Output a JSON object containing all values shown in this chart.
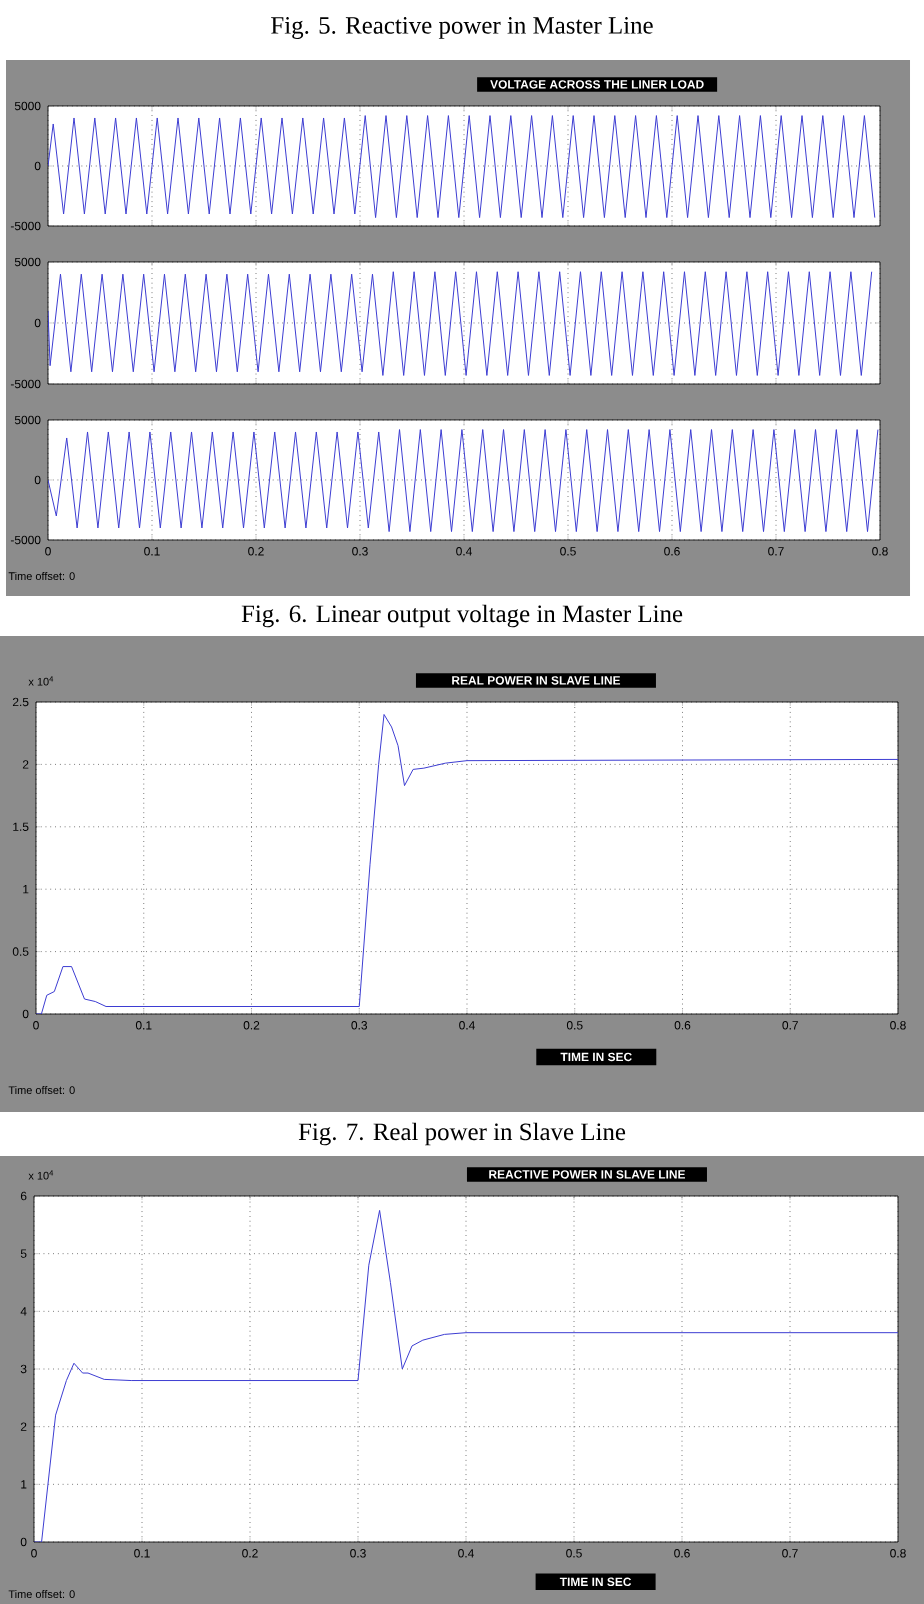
{
  "chart_data": [
    {
      "type": "line",
      "title": "VOLTAGE ACROSS THE LINER LOAD",
      "annotations": [
        "Fig. 5. Reactive power in Master Line"
      ],
      "xlim": [
        0,
        0.8
      ],
      "ylim": [
        -5000,
        5000
      ],
      "xticks": [
        0,
        0.1,
        0.2,
        0.3,
        0.4,
        0.5,
        0.6,
        0.7,
        0.8
      ],
      "yticks": [
        -5000,
        0,
        5000
      ],
      "grid": true,
      "tick_labels": "y",
      "x": [
        0,
        0.005,
        0.015,
        0.025,
        0.035,
        0.045,
        0.055,
        0.065,
        0.075,
        0.085,
        0.095,
        0.105,
        0.115,
        0.125,
        0.135,
        0.145,
        0.155,
        0.165,
        0.175,
        0.185,
        0.195,
        0.205,
        0.215,
        0.225,
        0.235,
        0.245,
        0.255,
        0.265,
        0.275,
        0.285,
        0.295,
        0.305,
        0.315,
        0.325,
        0.335,
        0.345,
        0.355,
        0.365,
        0.375,
        0.385,
        0.395,
        0.405,
        0.415,
        0.425,
        0.435,
        0.445,
        0.455,
        0.465,
        0.475,
        0.485,
        0.495,
        0.505,
        0.515,
        0.525,
        0.535,
        0.545,
        0.555,
        0.565,
        0.575,
        0.585,
        0.595,
        0.605,
        0.615,
        0.625,
        0.635,
        0.645,
        0.655,
        0.665,
        0.675,
        0.685,
        0.695,
        0.705,
        0.715,
        0.725,
        0.735,
        0.745,
        0.755,
        0.765,
        0.775,
        0.785,
        0.795
      ],
      "series": [
        {
          "color": "#3c3cd2",
          "values": [
            0,
            3500,
            -4000,
            4000,
            -4000,
            4000,
            -4000,
            4000,
            -4000,
            4000,
            -4000,
            4000,
            -4000,
            4000,
            -4000,
            4000,
            -4000,
            4000,
            -4000,
            4000,
            -4000,
            4000,
            -4000,
            4000,
            -4000,
            4000,
            -4000,
            4000,
            -4000,
            4000,
            -4000,
            4200,
            -4300,
            4200,
            -4300,
            4200,
            -4300,
            4200,
            -4300,
            4200,
            -4300,
            4200,
            -4300,
            4200,
            -4300,
            4200,
            -4300,
            4200,
            -4300,
            4200,
            -4300,
            4200,
            -4300,
            4200,
            -4300,
            4200,
            -4300,
            4200,
            -4300,
            4200,
            -4300,
            4200,
            -4300,
            4200,
            -4300,
            4200,
            -4300,
            4200,
            -4300,
            4200,
            -4300,
            4200,
            -4300,
            4200,
            -4300,
            4200,
            -4300,
            4200,
            -4300,
            4200,
            -4300
          ]
        }
      ]
    },
    {
      "type": "line",
      "xlim": [
        0,
        0.8
      ],
      "ylim": [
        -5000,
        5000
      ],
      "xticks": [
        0,
        0.1,
        0.2,
        0.3,
        0.4,
        0.5,
        0.6,
        0.7,
        0.8
      ],
      "yticks": [
        -5000,
        0,
        5000
      ],
      "grid": true,
      "tick_labels": "y",
      "x": [
        0,
        0.002,
        0.012,
        0.022,
        0.032,
        0.042,
        0.052,
        0.062,
        0.072,
        0.082,
        0.092,
        0.102,
        0.112,
        0.122,
        0.132,
        0.142,
        0.152,
        0.162,
        0.172,
        0.182,
        0.192,
        0.202,
        0.212,
        0.222,
        0.232,
        0.242,
        0.252,
        0.262,
        0.272,
        0.282,
        0.292,
        0.302,
        0.312,
        0.322,
        0.332,
        0.342,
        0.352,
        0.362,
        0.372,
        0.382,
        0.392,
        0.402,
        0.412,
        0.422,
        0.432,
        0.442,
        0.452,
        0.462,
        0.472,
        0.482,
        0.492,
        0.502,
        0.512,
        0.522,
        0.532,
        0.542,
        0.552,
        0.562,
        0.572,
        0.582,
        0.592,
        0.602,
        0.612,
        0.622,
        0.632,
        0.642,
        0.652,
        0.662,
        0.672,
        0.682,
        0.692,
        0.702,
        0.712,
        0.722,
        0.732,
        0.742,
        0.752,
        0.762,
        0.772,
        0.782,
        0.792
      ],
      "series": [
        {
          "color": "#3c3cd2",
          "values": [
            1000,
            -3500,
            4000,
            -4000,
            4000,
            -4000,
            4000,
            -4000,
            4000,
            -4000,
            4000,
            -4000,
            4000,
            -4000,
            4000,
            -4000,
            4000,
            -4000,
            4000,
            -4000,
            4000,
            -4000,
            4000,
            -4000,
            4000,
            -4000,
            4000,
            -4000,
            4000,
            -4000,
            4000,
            -4000,
            4000,
            -4300,
            4200,
            -4300,
            4200,
            -4300,
            4200,
            -4300,
            4200,
            -4300,
            4200,
            -4300,
            4200,
            -4300,
            4200,
            -4300,
            4200,
            -4300,
            4200,
            -4300,
            4200,
            -4300,
            4200,
            -4300,
            4200,
            -4300,
            4200,
            -4300,
            4200,
            -4300,
            4200,
            -4300,
            4200,
            -4300,
            4200,
            -4300,
            4200,
            -4300,
            4200,
            -4300,
            4200,
            -4300,
            4200,
            -4300,
            4200,
            -4300,
            4200,
            -4300,
            4200
          ]
        }
      ]
    },
    {
      "type": "line",
      "annotations": [
        "Time offset: 0",
        "Fig. 6. Linear output voltage in Master Line"
      ],
      "xlim": [
        0,
        0.8
      ],
      "ylim": [
        -5000,
        5000
      ],
      "xticks": [
        0,
        0.1,
        0.2,
        0.3,
        0.4,
        0.5,
        0.6,
        0.7,
        0.8
      ],
      "yticks": [
        -5000,
        0,
        5000
      ],
      "grid": true,
      "x": [
        0,
        0.008,
        0.018,
        0.028,
        0.038,
        0.048,
        0.058,
        0.068,
        0.078,
        0.088,
        0.098,
        0.108,
        0.118,
        0.128,
        0.138,
        0.148,
        0.158,
        0.168,
        0.178,
        0.188,
        0.198,
        0.208,
        0.218,
        0.228,
        0.238,
        0.248,
        0.258,
        0.268,
        0.278,
        0.288,
        0.298,
        0.308,
        0.318,
        0.328,
        0.338,
        0.348,
        0.358,
        0.368,
        0.378,
        0.388,
        0.398,
        0.408,
        0.418,
        0.428,
        0.438,
        0.448,
        0.458,
        0.468,
        0.478,
        0.488,
        0.498,
        0.508,
        0.518,
        0.528,
        0.538,
        0.548,
        0.558,
        0.568,
        0.578,
        0.588,
        0.598,
        0.608,
        0.618,
        0.628,
        0.638,
        0.648,
        0.658,
        0.668,
        0.678,
        0.688,
        0.698,
        0.708,
        0.718,
        0.728,
        0.738,
        0.748,
        0.758,
        0.768,
        0.778,
        0.788,
        0.798
      ],
      "series": [
        {
          "color": "#3c3cd2",
          "values": [
            0,
            -3000,
            3500,
            -4000,
            4000,
            -4000,
            4000,
            -4000,
            4000,
            -4000,
            4000,
            -4000,
            4000,
            -4000,
            4000,
            -4000,
            4000,
            -4000,
            4000,
            -4000,
            4000,
            -4000,
            4000,
            -4000,
            4000,
            -4000,
            4000,
            -4000,
            4000,
            -4000,
            4000,
            -4000,
            4000,
            -4300,
            4200,
            -4300,
            4200,
            -4300,
            4200,
            -4300,
            4200,
            -4300,
            4200,
            -4300,
            4200,
            -4300,
            4200,
            -4300,
            4200,
            -4300,
            4200,
            -4300,
            4200,
            -4300,
            4200,
            -4300,
            4200,
            -4300,
            4200,
            -4300,
            4200,
            -4300,
            4200,
            -4300,
            4200,
            -4300,
            4200,
            -4300,
            4200,
            -4300,
            4200,
            -4300,
            4200,
            -4300,
            4200,
            -4300,
            4200,
            -4300,
            4200,
            -4300,
            4200
          ]
        }
      ]
    },
    {
      "type": "line",
      "title": "REAL POWER IN SLAVE LINE",
      "xlabel": "TIME IN SEC",
      "annotations": [
        "x 10$^{4}$",
        "Time offset: 0",
        "Fig. 7. Real power in Slave Line"
      ],
      "xlim": [
        0,
        0.8
      ],
      "ylim": [
        0,
        2.5
      ],
      "xticks": [
        0,
        0.1,
        0.2,
        0.3,
        0.4,
        0.5,
        0.6,
        0.7,
        0.8
      ],
      "yticks": [
        0,
        0.5,
        1,
        1.5,
        2,
        2.5
      ],
      "grid": true,
      "x": [
        0,
        0.005,
        0.01,
        0.017,
        0.025,
        0.033,
        0.045,
        0.055,
        0.065,
        0.3,
        0.31,
        0.318,
        0.323,
        0.33,
        0.336,
        0.342,
        0.35,
        0.36,
        0.38,
        0.4,
        0.8
      ],
      "series": [
        {
          "color": "#3c3cd2",
          "values": [
            0,
            0,
            0.15,
            0.18,
            0.38,
            0.38,
            0.12,
            0.1,
            0.06,
            0.06,
            1.2,
            2,
            2.4,
            2.3,
            2.15,
            1.83,
            1.96,
            1.97,
            2.01,
            2.03,
            2.04
          ]
        }
      ]
    },
    {
      "type": "line",
      "title": "REACTIVE POWER IN SLAVE LINE",
      "xlabel": "TIME IN SEC",
      "annotations": [
        "x 10$^{4}$",
        "Time offset: 0"
      ],
      "xlim": [
        0,
        0.8
      ],
      "ylim": [
        0,
        6
      ],
      "xticks": [
        0,
        0.1,
        0.2,
        0.3,
        0.4,
        0.5,
        0.6,
        0.7,
        0.8
      ],
      "yticks": [
        0,
        1,
        2,
        3,
        4,
        5,
        6
      ],
      "grid": true,
      "x": [
        0,
        0.007,
        0.02,
        0.03,
        0.037,
        0.045,
        0.05,
        0.065,
        0.09,
        0.3,
        0.31,
        0.32,
        0.33,
        0.341,
        0.35,
        0.36,
        0.38,
        0.4,
        0.8
      ],
      "series": [
        {
          "color": "#3c3cd2",
          "values": [
            0,
            0,
            2.2,
            2.8,
            3.1,
            2.93,
            2.93,
            2.82,
            2.8,
            2.8,
            4.8,
            5.75,
            4.5,
            3,
            3.4,
            3.5,
            3.6,
            3.63,
            3.63
          ]
        }
      ]
    }
  ]
}
